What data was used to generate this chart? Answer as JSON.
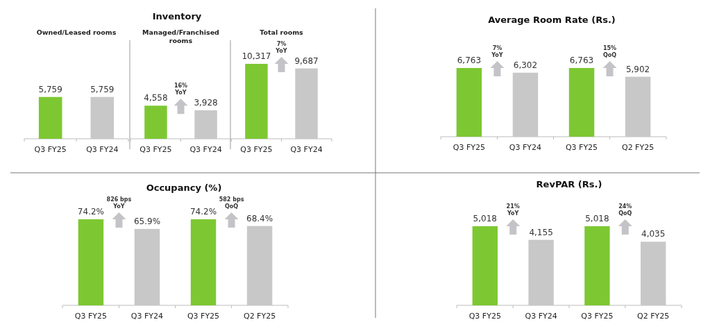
{
  "chart_data": [
    {
      "type": "bar",
      "subtitle": "Owned/Leased rooms",
      "categories": [
        "Q3 FY25",
        "Q3 FY24"
      ],
      "values": [
        5759,
        5759
      ],
      "value_labels": [
        "5,759",
        "5,759"
      ],
      "colors": [
        "#7dc832",
        "#c8c8c8"
      ]
    },
    {
      "type": "bar",
      "title": "Inventory",
      "subtitle": "Managed/Franchised rooms",
      "categories": [
        "Q3 FY25",
        "Q3 FY24"
      ],
      "values": [
        4558,
        3928
      ],
      "value_labels": [
        "4,558",
        "3,928"
      ],
      "colors": [
        "#7dc832",
        "#c8c8c8"
      ],
      "annotations": [
        "16% YoY"
      ]
    },
    {
      "type": "bar",
      "subtitle": "Total rooms",
      "categories": [
        "Q3 FY25",
        "Q3 FY24"
      ],
      "values": [
        10317,
        9687
      ],
      "value_labels": [
        "10,317",
        "9,687"
      ],
      "colors": [
        "#7dc832",
        "#c8c8c8"
      ],
      "annotations": [
        "7% YoY"
      ]
    },
    {
      "type": "bar",
      "title": "Average Room Rate (Rs.)",
      "categories": [
        "Q3 FY25",
        "Q3 FY24",
        "Q3 FY25",
        "Q2 FY25"
      ],
      "values": [
        6763,
        6302,
        6763,
        5902
      ],
      "value_labels": [
        "6,763",
        "6,302",
        "6,763",
        "5,902"
      ],
      "colors": [
        "#7dc832",
        "#c8c8c8",
        "#7dc832",
        "#c8c8c8"
      ],
      "annotations": [
        "7% YoY",
        "15% QoQ"
      ]
    },
    {
      "type": "bar",
      "title": "Occupancy (%)",
      "categories": [
        "Q3 FY25",
        "Q3 FY24",
        "Q3 FY25",
        "Q2 FY25"
      ],
      "values": [
        74.2,
        65.9,
        74.2,
        68.4
      ],
      "value_labels": [
        "74.2%",
        "65.9%",
        "74.2%",
        "68.4%"
      ],
      "colors": [
        "#7dc832",
        "#c8c8c8",
        "#7dc832",
        "#c8c8c8"
      ],
      "annotations": [
        "826 bps YoY",
        "582 bps QoQ"
      ]
    },
    {
      "type": "bar",
      "title": "RevPAR (Rs.)",
      "categories": [
        "Q3 FY25",
        "Q3 FY24",
        "Q3 FY25",
        "Q2 FY25"
      ],
      "values": [
        5018,
        4155,
        5018,
        4035
      ],
      "value_labels": [
        "5,018",
        "4,155",
        "5,018",
        "4,035"
      ],
      "colors": [
        "#7dc832",
        "#c8c8c8",
        "#7dc832",
        "#c8c8c8"
      ],
      "annotations": [
        "21% YoY",
        "24% QoQ"
      ]
    }
  ]
}
